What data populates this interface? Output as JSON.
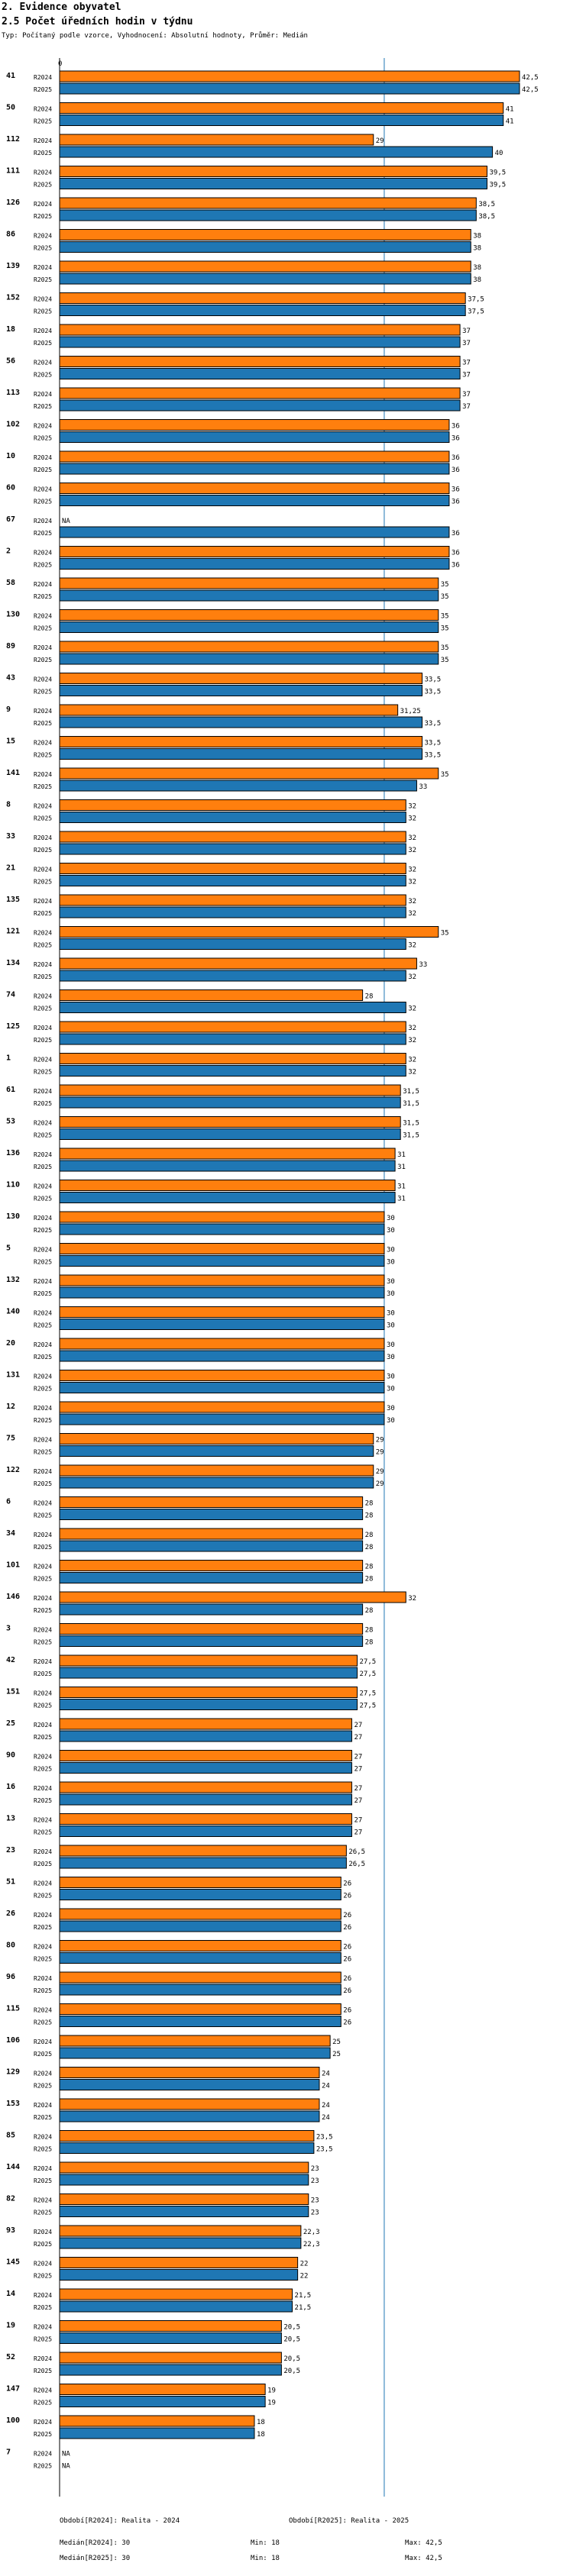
{
  "header": {
    "section": "2. Evidence obyvatel",
    "title": "2.5 Počet úředních hodin v týdnu",
    "subtitle": "Typ: Počítaný podle vzorce, Vyhodnocení: Absolutní hodnoty, Průměr: Medián"
  },
  "colors": {
    "r2024": "#ff7f0e",
    "r2025": "#1f77b4",
    "median_line": "#1f77b4"
  },
  "chart_data": {
    "type": "bar",
    "orientation": "horizontal",
    "axis_tick_label": "0",
    "series_names": [
      "R2024",
      "R2025"
    ],
    "median_reference": 30,
    "value_max": 42.5,
    "categories": [
      "41",
      "50",
      "112",
      "111",
      "126",
      "86",
      "139",
      "152",
      "18",
      "56",
      "113",
      "102",
      "10",
      "60",
      "67",
      "2",
      "58",
      "130",
      "89",
      "43",
      "9",
      "15",
      "141",
      "8",
      "33",
      "21",
      "135",
      "121",
      "134",
      "74",
      "125",
      "1",
      "61",
      "53",
      "136",
      "110",
      "130",
      "5",
      "132",
      "140",
      "20",
      "131",
      "12",
      "75",
      "122",
      "6",
      "34",
      "101",
      "146",
      "3",
      "42",
      "151",
      "25",
      "90",
      "16",
      "13",
      "23",
      "51",
      "26",
      "80",
      "96",
      "115",
      "106",
      "129",
      "153",
      "85",
      "144",
      "82",
      "93",
      "145",
      "14",
      "19",
      "52",
      "147",
      "100",
      "7"
    ],
    "series": [
      {
        "name": "R2024",
        "values": [
          42.5,
          41,
          29,
          39.5,
          38.5,
          38,
          38,
          37.5,
          37,
          37,
          37,
          36,
          36,
          36,
          null,
          36,
          35,
          35,
          35,
          33.5,
          31.25,
          33.5,
          35,
          32,
          32,
          32,
          32,
          35,
          33,
          28,
          32,
          32,
          31.5,
          31.5,
          31,
          31,
          30,
          30,
          30,
          30,
          30,
          30,
          30,
          29,
          29,
          28,
          28,
          28,
          32,
          28,
          27.5,
          27.5,
          27,
          27,
          27,
          27,
          26.5,
          26,
          26,
          26,
          26,
          26,
          25,
          24,
          24,
          23.5,
          23,
          23,
          22.3,
          22,
          21.5,
          20.5,
          20.5,
          19,
          18,
          null
        ]
      },
      {
        "name": "R2025",
        "values": [
          42.5,
          41,
          40,
          39.5,
          38.5,
          38,
          38,
          37.5,
          37,
          37,
          37,
          36,
          36,
          36,
          36,
          36,
          35,
          35,
          35,
          33.5,
          33.5,
          33.5,
          33,
          32,
          32,
          32,
          32,
          32,
          32,
          32,
          32,
          32,
          31.5,
          31.5,
          31,
          31,
          30,
          30,
          30,
          30,
          30,
          30,
          30,
          29,
          29,
          28,
          28,
          28,
          28,
          28,
          27.5,
          27.5,
          27,
          27,
          27,
          27,
          26.5,
          26,
          26,
          26,
          26,
          26,
          25,
          24,
          24,
          23.5,
          23,
          23,
          22.3,
          22,
          21.5,
          20.5,
          20.5,
          19,
          18,
          null
        ]
      }
    ]
  },
  "footer": {
    "period_2024": "Období[R2024]: Realita - 2024",
    "period_2025": "Období[R2025]: Realita - 2025",
    "median_2024": "Medián[R2024]: 30",
    "min_2024": "Min: 18",
    "max_2024": "Max: 42,5",
    "median_2025": "Medián[R2025]: 30",
    "min_2025": "Min: 18",
    "max_2025": "Max: 42,5"
  }
}
